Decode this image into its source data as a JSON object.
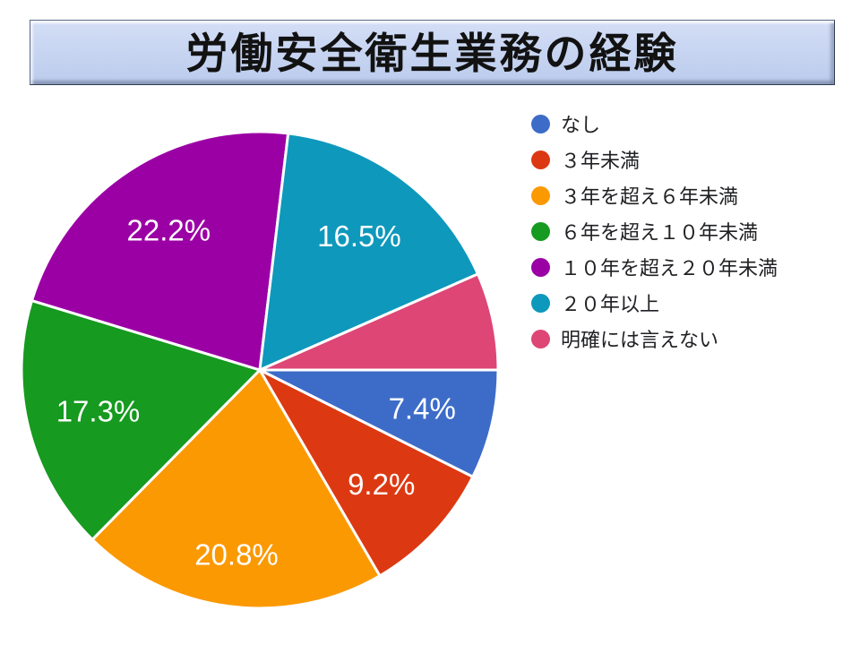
{
  "title": "労働安全衛生業務の経験",
  "chart_data": {
    "type": "pie",
    "title": "労働安全衛生業務の経験",
    "legend_position": "right",
    "rotation": "first slice starts at 3 o'clock, slices proceed clockwise",
    "data_label_color": "#ffffff",
    "slices": [
      {
        "label": "なし",
        "value_pct": 7.4,
        "color": "#3D6CC8",
        "data_label": "7.4%"
      },
      {
        "label": "３年未満",
        "value_pct": 9.2,
        "color": "#DC3912",
        "data_label": "9.2%"
      },
      {
        "label": "３年を超え６年未満",
        "value_pct": 20.8,
        "color": "#FB9902",
        "data_label": "20.8%"
      },
      {
        "label": "６年を超え１０年未満",
        "value_pct": 17.3,
        "color": "#169A1F",
        "data_label": "17.3%"
      },
      {
        "label": "１０年を超え２０年未満",
        "value_pct": 22.2,
        "color": "#9B00A5",
        "data_label": "22.2%"
      },
      {
        "label": "２０年以上",
        "value_pct": 16.5,
        "color": "#0E98BC",
        "data_label": "16.5%"
      },
      {
        "label": "明確には言えない",
        "value_pct": 6.6,
        "color": "#DE4676",
        "data_label": ""
      }
    ]
  }
}
